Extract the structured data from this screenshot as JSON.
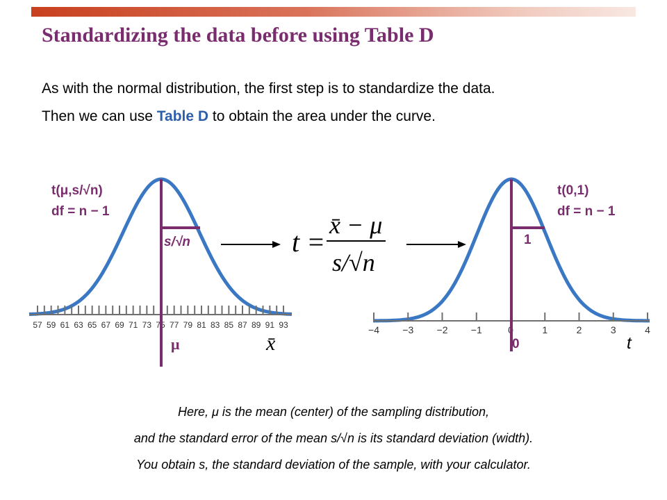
{
  "title": "Standardizing the data before using Table D",
  "intro": {
    "line1": "As with the normal distribution, the first step is to standardize the data.",
    "line2_before": "Then we can use ",
    "line2_highlight": "Table D",
    "line2_after": " to obtain the area under the curve."
  },
  "left_plot": {
    "dist_label": "t(μ,s/√n)",
    "df_label": "df = n − 1",
    "spread_label": "s/√n",
    "center_label": "μ",
    "axis_var_label": "x̄",
    "tick_labels": [
      "57",
      "59",
      "61",
      "63",
      "65",
      "67",
      "69",
      "71",
      "73",
      "75",
      "77",
      "79",
      "81",
      "83",
      "85",
      "87",
      "89",
      "91",
      "93"
    ]
  },
  "formula": {
    "lhs": "t =",
    "numerator": "x̄ − μ",
    "denominator": "s/√n"
  },
  "right_plot": {
    "dist_label": "t(0,1)",
    "df_label": "df = n − 1",
    "spread_label": "1",
    "center_label": "0",
    "axis_var_label": "t",
    "tick_labels": [
      "−4",
      "−3",
      "−2",
      "−1",
      "0",
      "1",
      "2",
      "3",
      "4"
    ]
  },
  "captions": {
    "line1": "Here, μ is the mean (center) of the sampling distribution,",
    "line2": "and the standard error of the mean s/√n is its standard deviation (width).",
    "line3": "You obtain s, the standard deviation of the sample, with your calculator."
  },
  "colors": {
    "curve": "#3a78c4",
    "purple": "#7a2d6e",
    "title": "#7a2d6e",
    "highlight": "#2e5fa8",
    "axis": "#6f6f6f"
  }
}
